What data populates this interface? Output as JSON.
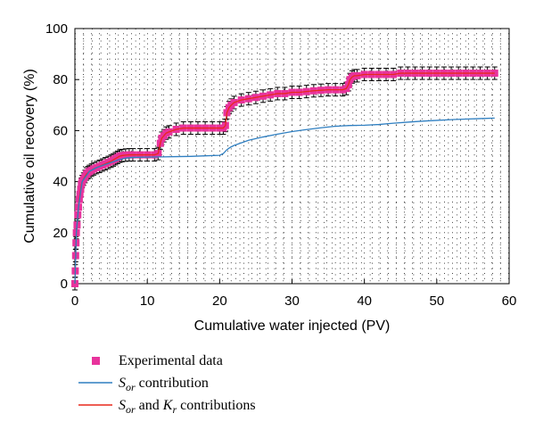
{
  "chart_data": {
    "type": "line",
    "xlabel": "Cumulative water injected (PV)",
    "ylabel": "Cumulative oil recovery (%)",
    "xlim": [
      0,
      60
    ],
    "ylim": [
      0,
      100
    ],
    "xticks": [
      0,
      10,
      20,
      30,
      40,
      50,
      60
    ],
    "yticks": [
      0,
      20,
      40,
      60,
      80,
      100
    ],
    "grid": "dotted",
    "legend": "bottom-left",
    "legend_entries": [
      {
        "key": "experimental",
        "prefix": "Experimental data",
        "sym1": "",
        "sub1": "",
        "mid": "",
        "sym2": "",
        "sub2": "",
        "suffix": ""
      },
      {
        "key": "sor",
        "prefix": "",
        "sym1": "S",
        "sub1": "or",
        "mid": " contribution",
        "sym2": "",
        "sub2": "",
        "suffix": ""
      },
      {
        "key": "sor_kr",
        "prefix": "",
        "sym1": "S",
        "sub1": "or",
        "mid": " and ",
        "sym2": "K",
        "sub2": "r",
        "suffix": " contributions"
      }
    ],
    "colors": {
      "experimental": "#e8339c",
      "sor": "#2f7fc1",
      "sor_kr": "#e8291c"
    },
    "series": [
      {
        "key": "experimental",
        "type": "scatter",
        "marker": "square",
        "x": [
          0,
          0.05,
          0.1,
          0.15,
          0.2,
          0.3,
          0.4,
          0.5,
          0.6,
          0.7,
          0.8,
          0.9,
          1.0,
          1.2,
          1.4,
          1.6,
          1.8,
          2.0,
          2.3,
          2.6,
          3.0,
          3.4,
          3.8,
          4.2,
          4.6,
          5.0,
          5.3,
          5.6,
          5.9,
          6.2,
          6.5,
          7.0,
          7.5,
          8.0,
          9.0,
          10.0,
          11.0,
          11.5,
          11.8,
          12.0,
          12.3,
          12.6,
          13.0,
          14.0,
          15.0,
          16.0,
          17.0,
          18.0,
          19.0,
          20.0,
          20.5,
          20.8,
          21.0,
          21.3,
          21.6,
          22.0,
          23.0,
          24.0,
          25.0,
          26.0,
          27.0,
          28.0,
          29.0,
          30.0,
          31.0,
          32.0,
          33.0,
          34.0,
          35.0,
          36.0,
          37.0,
          37.5,
          37.8,
          38.0,
          38.3,
          38.6,
          39.0,
          40.0,
          41.0,
          42.0,
          43.0,
          44.0,
          45.0,
          46.0,
          47.0,
          48.0,
          49.0,
          50.0,
          51.0,
          52.0,
          53.0,
          54.0,
          55.0,
          56.0,
          57.0,
          58.0
        ],
        "y": [
          0,
          5,
          11,
          16,
          20,
          23,
          27,
          30,
          33,
          35,
          37,
          39,
          40,
          41,
          42,
          43,
          43.5,
          44,
          44.5,
          45,
          45.5,
          46,
          46.5,
          47,
          47.5,
          48,
          48.5,
          49,
          49.5,
          50,
          50.2,
          50.4,
          50.5,
          50.5,
          50.5,
          50.5,
          50.5,
          51,
          55,
          57,
          58,
          59,
          59.5,
          60.5,
          61,
          61,
          61,
          61,
          61,
          61,
          61,
          62,
          67,
          69,
          70,
          71,
          72,
          72.5,
          73,
          73.5,
          74,
          74.5,
          74.5,
          75,
          75,
          75.3,
          75.6,
          75.8,
          76,
          76,
          76,
          76.5,
          78,
          80,
          81,
          81.5,
          81.5,
          82,
          82,
          82,
          82,
          82,
          82.5,
          82.5,
          82.5,
          82.5,
          82.5,
          82.5,
          82.5,
          82.5,
          82.5,
          82.5,
          82.5,
          82.5,
          82.5,
          82.5
        ]
      },
      {
        "key": "sor_kr",
        "type": "line",
        "x": [
          0,
          0.05,
          0.1,
          0.15,
          0.2,
          0.3,
          0.4,
          0.5,
          0.6,
          0.7,
          0.8,
          0.9,
          1.0,
          1.2,
          1.4,
          1.6,
          1.8,
          2.0,
          2.3,
          2.6,
          3.0,
          3.4,
          3.8,
          4.2,
          4.6,
          5.0,
          5.3,
          5.6,
          5.9,
          6.2,
          6.5,
          7.0,
          7.5,
          8.0,
          9.0,
          10.0,
          11.0,
          11.5,
          11.8,
          12.0,
          12.3,
          12.6,
          13.0,
          14.0,
          15.0,
          16.0,
          17.0,
          18.0,
          19.0,
          20.0,
          20.5,
          20.8,
          21.0,
          21.3,
          21.6,
          22.0,
          23.0,
          24.0,
          25.0,
          26.0,
          27.0,
          28.0,
          29.0,
          30.0,
          31.0,
          32.0,
          33.0,
          34.0,
          35.0,
          36.0,
          37.0,
          37.5,
          37.8,
          38.0,
          38.3,
          38.6,
          39.0,
          40.0,
          41.0,
          42.0,
          43.0,
          44.0,
          45.0,
          46.0,
          47.0,
          48.0,
          49.0,
          50.0,
          51.0,
          52.0,
          53.0,
          54.0,
          55.0,
          56.0,
          57.0,
          58.0
        ],
        "y": [
          0,
          5,
          11,
          16,
          20,
          23,
          27,
          30,
          33,
          35,
          37,
          39,
          40,
          41,
          42,
          43,
          43.5,
          44,
          44.5,
          45,
          45.5,
          46,
          46.5,
          47,
          47.5,
          48,
          48.5,
          49,
          49.5,
          50,
          50.2,
          50.4,
          50.5,
          50.5,
          50.5,
          50.5,
          50.5,
          51,
          55,
          57,
          58,
          59,
          59.5,
          60.5,
          61,
          61,
          61,
          61,
          61,
          61,
          61,
          62,
          67,
          69,
          70,
          71,
          72,
          72.5,
          73,
          73.5,
          74,
          74.5,
          74.5,
          75,
          75,
          75.3,
          75.6,
          75.8,
          76,
          76,
          76,
          76.5,
          78,
          80,
          81,
          81.5,
          81.5,
          82,
          82,
          82,
          82,
          82,
          82.5,
          82.5,
          82.5,
          82.5,
          82.5,
          82.5,
          82.5,
          82.5,
          82.5,
          82.5,
          82.5,
          82.5,
          82.5,
          82.5
        ]
      },
      {
        "key": "sor",
        "type": "line",
        "x": [
          0,
          0.2,
          0.5,
          1.0,
          2.0,
          3.0,
          4.0,
          5.0,
          6.0,
          7.0,
          8.0,
          10.0,
          12.0,
          14.0,
          16.0,
          18.0,
          20.0,
          20.5,
          21.0,
          21.5,
          22.0,
          23.0,
          24.0,
          26.0,
          28.0,
          30.0,
          32.0,
          34.0,
          36.0,
          38.0,
          40.0,
          42.0,
          44.0,
          46.0,
          48.0,
          50.0,
          52.0,
          54.0,
          56.0,
          58.0
        ],
        "y": [
          0,
          20,
          30,
          40,
          44,
          45.5,
          46.5,
          47.5,
          48.5,
          49.2,
          49.5,
          49.6,
          49.7,
          49.8,
          49.9,
          50.1,
          50.3,
          51,
          52.5,
          53.5,
          54.2,
          55.2,
          56.2,
          57.5,
          58.6,
          59.6,
          60.4,
          61.1,
          61.7,
          62.0,
          62.1,
          62.4,
          62.9,
          63.3,
          63.7,
          64.0,
          64.3,
          64.5,
          64.7,
          64.9
        ]
      }
    ]
  }
}
